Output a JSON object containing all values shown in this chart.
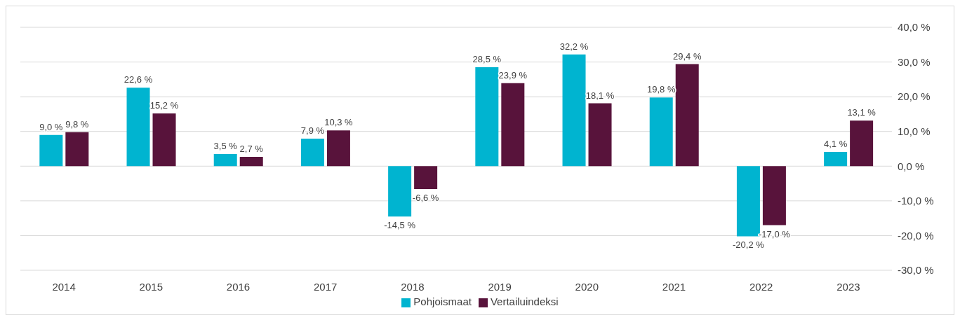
{
  "chart_data": {
    "type": "bar",
    "categories": [
      "2014",
      "2015",
      "2016",
      "2017",
      "2018",
      "2019",
      "2020",
      "2021",
      "2022",
      "2023"
    ],
    "series": [
      {
        "name": "Pohjoismaat",
        "color": "#00b4d0",
        "values": [
          9.0,
          22.6,
          3.5,
          7.9,
          -14.5,
          28.5,
          32.2,
          19.8,
          -20.2,
          4.1
        ],
        "value_labels": [
          "9,0 %",
          "22,6 %",
          "3,5 %",
          "7,9 %",
          "-14,5 %",
          "28,5 %",
          "32,2 %",
          "19,8 %",
          "-20,2 %",
          "4,1 %"
        ]
      },
      {
        "name": "Vertailuindeksi",
        "color": "#58133b",
        "values": [
          9.8,
          15.2,
          2.7,
          10.3,
          -6.6,
          23.9,
          18.1,
          29.4,
          -17.0,
          13.1
        ],
        "value_labels": [
          "9,8 %",
          "15,2 %",
          "2,7 %",
          "10,3 %",
          "-6,6 %",
          "23,9 %",
          "18,1 %",
          "29,4 %",
          "-17,0 %",
          "13,1 %"
        ]
      }
    ],
    "ylim": [
      -30,
      40
    ],
    "yticks": [
      {
        "value": -30,
        "label": "-30,0 %"
      },
      {
        "value": -20,
        "label": "-20,0 %"
      },
      {
        "value": -10,
        "label": "-10,0 %"
      },
      {
        "value": 0,
        "label": "0,0 %"
      },
      {
        "value": 10,
        "label": "10,0 %"
      },
      {
        "value": 20,
        "label": "20,0 %"
      },
      {
        "value": 30,
        "label": "30,0 %"
      },
      {
        "value": 40,
        "label": "40,0 %"
      }
    ],
    "grid": "y",
    "legend": "bottom"
  }
}
